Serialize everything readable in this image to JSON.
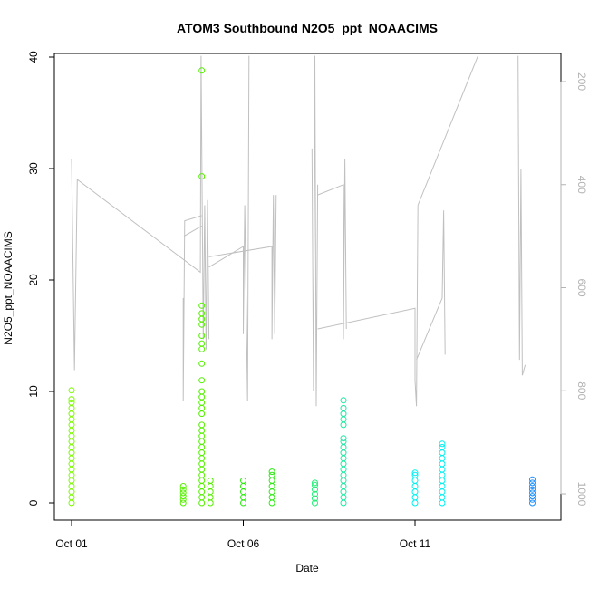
{
  "chart_data": {
    "type": "scatter",
    "title": "ATOM3 Southbound N2O5_ppt_NOAACIMS",
    "xlabel": "Date",
    "ylabel": "N2O5_ppt_NOAACIMS",
    "x_type": "date",
    "x_ticks": [
      "Oct 01",
      "Oct 06",
      "Oct 11"
    ],
    "x_tick_values": [
      "2017-10-01",
      "2017-10-06",
      "2017-10-11"
    ],
    "xlim": [
      "2017-09-30T23:00",
      "2017-10-15T05:00"
    ],
    "ylim": [
      0,
      40
    ],
    "y_ticks": [
      0,
      10,
      20,
      30,
      40
    ],
    "secondary_y": {
      "label": "",
      "reversed": true,
      "ticks": [
        200,
        400,
        600,
        800,
        1000
      ],
      "lim": [
        1040,
        150
      ],
      "color": "#b3b3b3"
    },
    "grid": false,
    "legend": "none",
    "marker": "open-circle",
    "series": [
      {
        "color": "#7cfc00",
        "points": [
          {
            "x": "2017-10-01T00:00",
            "y": [
              0,
              0.5,
              1,
              1.5,
              2,
              2.5,
              3,
              3.5,
              4,
              4.5,
              5,
              5.5,
              6,
              6.5,
              7,
              7.5,
              8,
              8.5,
              9,
              9.3,
              10.1
            ]
          }
        ]
      },
      {
        "color": "#55f000",
        "points": [
          {
            "x": "2017-10-04T06:00",
            "y": [
              0,
              0.3,
              0.6,
              0.9,
              1.2,
              1.5
            ]
          },
          {
            "x": "2017-10-04T19:00",
            "y": [
              0,
              0.5,
              1,
              1.5,
              2,
              2.5,
              3,
              3.5,
              4,
              4.5,
              5,
              5.5,
              6,
              6.5,
              7,
              8,
              8.5,
              9,
              9.5,
              10,
              11,
              12.5,
              13.8,
              14.3,
              15,
              16,
              16.5,
              17,
              17.7,
              29.3,
              38.8
            ]
          },
          {
            "x": "2017-10-05T01:00",
            "y": [
              0,
              0.5,
              1,
              1.5,
              2
            ]
          }
        ]
      },
      {
        "color": "#2bea10",
        "points": [
          {
            "x": "2017-10-06T00:00",
            "y": [
              0,
              0.5,
              1,
              1.5,
              2
            ]
          },
          {
            "x": "2017-10-06T20:00",
            "y": [
              0,
              0.5,
              1,
              1.5,
              2,
              2.5,
              2.8
            ]
          }
        ]
      },
      {
        "color": "#22ee77",
        "points": [
          {
            "x": "2017-10-08T02:00",
            "y": [
              0,
              0.4,
              0.8,
              1.2,
              1.6,
              1.8
            ]
          }
        ]
      },
      {
        "color": "#1ee8a2",
        "points": [
          {
            "x": "2017-10-08T22:00",
            "y": [
              0,
              0.5,
              1,
              1.5,
              2,
              2.5,
              3,
              3.5,
              4,
              4.5,
              5,
              5.5,
              5.8,
              7,
              7.5,
              8,
              8.5,
              9.2
            ]
          }
        ]
      },
      {
        "color": "#00f0f0",
        "points": [
          {
            "x": "2017-10-11T00:00",
            "y": [
              0,
              0.5,
              1,
              1.5,
              2,
              2.5,
              2.7
            ]
          },
          {
            "x": "2017-10-11T19:00",
            "y": [
              0,
              0.5,
              1,
              1.5,
              2,
              2.5,
              3,
              3.5,
              4,
              4.5,
              5,
              5.3
            ]
          }
        ]
      },
      {
        "color": "#1e90ff",
        "points": [
          {
            "x": "2017-10-14T10:00",
            "y": [
              0,
              0.3,
              0.6,
              0.9,
              1.2,
              1.5,
              1.8,
              2.1
            ]
          }
        ]
      }
    ],
    "secondary_series": {
      "color": "#c0c0c0",
      "type": "line"
    }
  }
}
